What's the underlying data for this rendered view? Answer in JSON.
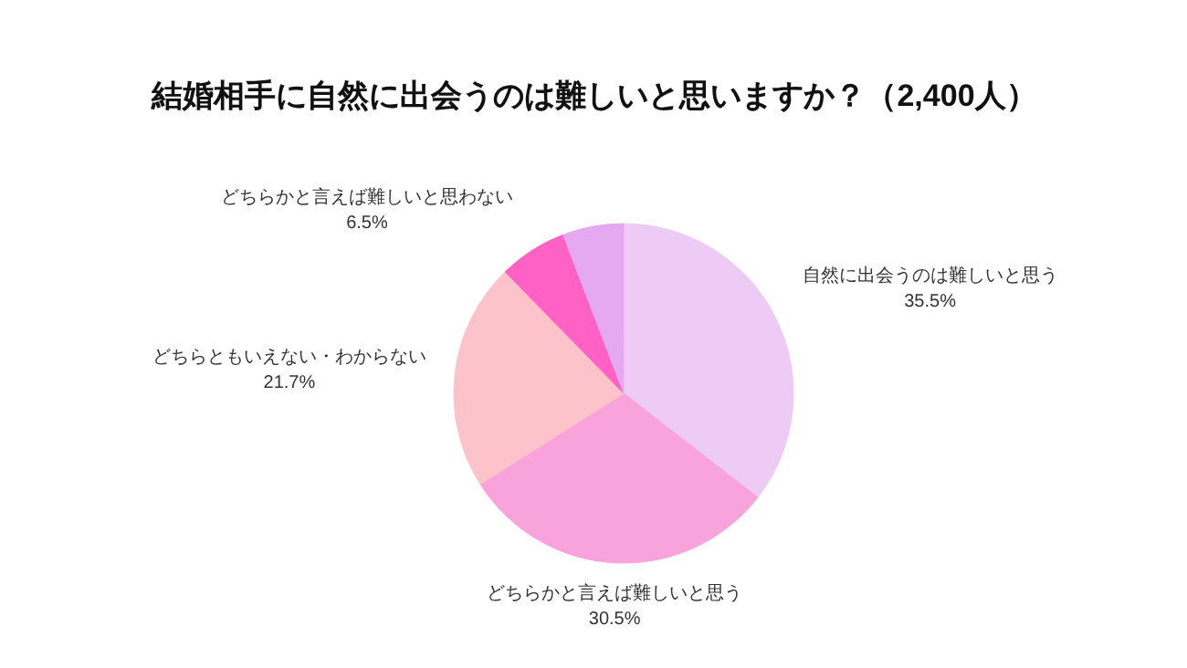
{
  "chart_data": {
    "type": "pie",
    "title": "結婚相手に自然に出会うのは難しいと思いますか？（2,400人）",
    "categories": [
      "自然に出会うのは難しいと思う",
      "どちらかと言えば難しいと思う",
      "どちらともいえない・わからない",
      "どちらかと言えば難しいと思わない",
      null
    ],
    "values": [
      35.5,
      30.5,
      21.7,
      6.5,
      5.8
    ],
    "value_labels": [
      "35.5%",
      "30.5%",
      "21.7%",
      "6.5%",
      null
    ],
    "colors": [
      "#edcbf5",
      "#f9a3db",
      "#fdc3cb",
      "#ff62c4",
      "#e4a9f0"
    ]
  }
}
